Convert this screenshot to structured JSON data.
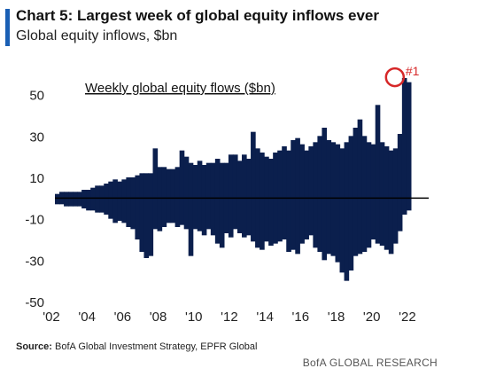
{
  "header": {
    "title": "Chart 5: Largest week of global equity inflows ever",
    "subtitle": "Global equity inflows, $bn"
  },
  "footer": {
    "source_label": "Source:",
    "source_text": " BofA Global Investment Strategy, EPFR Global",
    "brand": "BofA GLOBAL RESEARCH"
  },
  "colors": {
    "bars": "#0b1f4d",
    "accent": "#1a5fb4",
    "highlight": "#d62728",
    "zero_line": "#000000"
  },
  "chart_data": {
    "type": "bar",
    "title": "Weekly global equity flows ($bn)",
    "xlabel": "",
    "ylabel": "",
    "x_ticks": [
      "'02",
      "'04",
      "'06",
      "'08",
      "'10",
      "'12",
      "'14",
      "'16",
      "'18",
      "'20",
      "'22"
    ],
    "y_ticks": [
      50,
      30,
      10,
      -10,
      -30,
      -50
    ],
    "xlim": [
      2002,
      2023
    ],
    "ylim": [
      -50,
      60
    ],
    "grid": false,
    "annotation": {
      "text": "#1",
      "x": 2021.1,
      "y": 58.4
    },
    "series": [
      {
        "x_start": 2002.0,
        "step_years": 0.25,
        "max": [
          2,
          3,
          3,
          3,
          3,
          3,
          4,
          4,
          5,
          6,
          6,
          7,
          8,
          9,
          8,
          9,
          10,
          10,
          11,
          12,
          12,
          12,
          24,
          15,
          15,
          14,
          14,
          15,
          23,
          20,
          17,
          16,
          18,
          16,
          17,
          17,
          19,
          17,
          17,
          21,
          21,
          18,
          21,
          19,
          32,
          24,
          22,
          20,
          19,
          22,
          23,
          25,
          23,
          28,
          29,
          26,
          23,
          25,
          27,
          30,
          34,
          28,
          27,
          26,
          24,
          27,
          30,
          34,
          38,
          30,
          27,
          26,
          45,
          27,
          25,
          23,
          24,
          31,
          58,
          56
        ],
        "min": [
          -3,
          -3,
          -4,
          -4,
          -4,
          -4,
          -5,
          -6,
          -6,
          -7,
          -7,
          -8,
          -10,
          -12,
          -11,
          -12,
          -14,
          -15,
          -20,
          -26,
          -29,
          -28,
          -15,
          -16,
          -14,
          -12,
          -12,
          -14,
          -13,
          -15,
          -28,
          -15,
          -16,
          -18,
          -15,
          -18,
          -22,
          -24,
          -17,
          -19,
          -15,
          -17,
          -19,
          -18,
          -21,
          -24,
          -25,
          -21,
          -23,
          -22,
          -21,
          -20,
          -26,
          -25,
          -27,
          -22,
          -20,
          -18,
          -24,
          -26,
          -30,
          -27,
          -28,
          -31,
          -36,
          -40,
          -35,
          -28,
          -27,
          -26,
          -24,
          -20,
          -22,
          -23,
          -25,
          -27,
          -22,
          -16,
          -8,
          -6
        ]
      }
    ]
  }
}
